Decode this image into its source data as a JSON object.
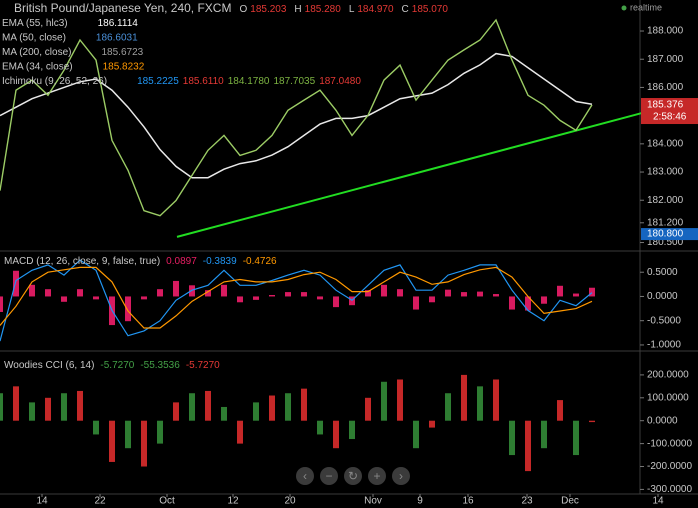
{
  "chart_data": [
    {
      "type": "line",
      "title": "British Pound/Japanese Yen, 240, FXCM",
      "ohlc": [
        {
          "label": "O",
          "text": "185.203"
        },
        {
          "label": "H",
          "text": "185.280"
        },
        {
          "label": "L",
          "text": "184.970"
        },
        {
          "label": "C",
          "text": "185.070"
        }
      ],
      "status": "realtime",
      "legend": [
        {
          "name": "EMA (55, hlc3)",
          "texts": [
            "186.1114"
          ],
          "colors": [
            "#ffffff"
          ]
        },
        {
          "name": "MA (50, close)",
          "texts": [
            "186.6031"
          ],
          "colors": [
            "#4a90d9"
          ]
        },
        {
          "name": "MA (200, close)",
          "texts": [
            "185.6723"
          ],
          "colors": [
            "#9e9e9e"
          ]
        },
        {
          "name": "EMA (34, close)",
          "texts": [
            "185.8232"
          ],
          "colors": [
            "#ff9800"
          ]
        },
        {
          "name": "Ichimoku (9, 26, 52, 26)",
          "texts": [
            "185.2225",
            "185.6110",
            "184.1780",
            "187.7035",
            "187.0480"
          ],
          "colors": [
            "#2196f3",
            "#e53935",
            "#7cb342",
            "#7cb342",
            "#e53935"
          ]
        }
      ],
      "x": [
        0,
        4,
        8,
        12,
        16,
        20,
        24,
        28,
        32,
        36,
        40,
        44,
        48,
        52,
        56,
        60,
        64,
        68,
        72,
        76,
        80,
        84,
        88,
        92,
        96,
        100,
        104,
        108,
        112,
        116,
        120,
        124,
        128,
        132,
        136,
        140,
        144,
        148
      ],
      "values": [
        182.34,
        185.9,
        186.26,
        185.72,
        186.61,
        187.68,
        186.97,
        184.12,
        183.06,
        181.63,
        181.45,
        181.99,
        182.88,
        183.77,
        184.3,
        183.59,
        183.77,
        184.3,
        185.19,
        185.55,
        185.9,
        185.19,
        184.3,
        185.01,
        186.26,
        186.79,
        185.55,
        186.26,
        186.97,
        187.33,
        187.68,
        188.39,
        186.97,
        185.72,
        185.37,
        184.83,
        184.48,
        185.38
      ],
      "color": "#9ccc65",
      "series": [
        {
          "name": "EMA (55, hlc3)",
          "color": "#e8e8e8",
          "values": [
            185.0,
            185.3,
            185.6,
            185.8,
            186.0,
            186.2,
            186.3,
            185.9,
            185.3,
            184.6,
            183.8,
            183.2,
            182.8,
            182.8,
            183.1,
            183.3,
            183.4,
            183.6,
            183.9,
            184.3,
            184.7,
            184.9,
            184.9,
            185.0,
            185.3,
            185.6,
            185.7,
            185.8,
            186.1,
            186.5,
            186.8,
            187.2,
            187.1,
            186.7,
            186.3,
            185.9,
            185.5,
            185.4
          ]
        }
      ],
      "trendline": {
        "x": [
          44.25,
          161.25
        ],
        "values": [
          180.7,
          185.12
        ],
        "color": "#22dd22"
      },
      "xlim": [
        0,
        174.5
      ],
      "xticks": [
        {
          "value": 10.5,
          "label": "14"
        },
        {
          "value": 25,
          "label": "22"
        },
        {
          "value": 41.75,
          "label": "Oct"
        },
        {
          "value": 58.25,
          "label": "12"
        },
        {
          "value": 72.5,
          "label": "20"
        },
        {
          "value": 93.25,
          "label": "Nov"
        },
        {
          "value": 105,
          "label": "9"
        },
        {
          "value": 117,
          "label": "16"
        },
        {
          "value": 131.75,
          "label": "23"
        },
        {
          "value": 142.5,
          "label": "Dec"
        },
        {
          "value": 164.5,
          "label": "14"
        }
      ],
      "ylim": [
        180.2,
        189.1
      ],
      "yticks": [
        {
          "value": 188,
          "label": "188.000"
        },
        {
          "value": 187,
          "label": "187.000"
        },
        {
          "value": 186,
          "label": "186.000"
        },
        {
          "value": 184,
          "label": "184.000"
        },
        {
          "value": 183,
          "label": "183.000"
        },
        {
          "value": 182,
          "label": "182.000"
        },
        {
          "value": 181.2,
          "label": "181.200"
        },
        {
          "value": 180.5,
          "label": "180.500"
        }
      ],
      "last_price": 185.376,
      "last_time": "2:58:46",
      "marker": {
        "value": 180.8,
        "label": "180.800"
      }
    },
    {
      "type": "macd",
      "title": "MACD (12, 26, close, 9, false, true)",
      "readings": [
        {
          "text": "0.0897",
          "color": "#e91e63"
        },
        {
          "text": "-0.3839",
          "color": "#2196f3"
        },
        {
          "text": "-0.4726",
          "color": "#ff9800"
        }
      ],
      "lines": [
        {
          "color": "#2196f3",
          "values": [
            -0.92,
            0.33,
            0.54,
            0.65,
            0.44,
            0.75,
            0.54,
            -0.29,
            -0.81,
            -0.71,
            -0.5,
            -0.08,
            0.13,
            0.23,
            0.54,
            0.23,
            0.23,
            0.33,
            0.44,
            0.54,
            0.44,
            0.13,
            -0.08,
            0.23,
            0.54,
            0.65,
            0.13,
            0.13,
            0.44,
            0.54,
            0.65,
            0.65,
            0.13,
            -0.29,
            -0.5,
            -0.08,
            -0.19,
            0.08
          ]
        },
        {
          "color": "#ff9800",
          "values": [
            -0.6,
            -0.2,
            0.3,
            0.5,
            0.55,
            0.6,
            0.6,
            0.3,
            -0.3,
            -0.65,
            -0.65,
            -0.4,
            -0.1,
            0.1,
            0.3,
            0.35,
            0.3,
            0.3,
            0.35,
            0.45,
            0.5,
            0.35,
            0.1,
            0.1,
            0.3,
            0.5,
            0.4,
            0.25,
            0.3,
            0.45,
            0.55,
            0.6,
            0.4,
            0.0,
            -0.35,
            -0.3,
            -0.25,
            -0.1
          ]
        }
      ],
      "histogram": {
        "color": "#d81b60",
        "values": [
          -0.32,
          0.53,
          0.24,
          0.15,
          -0.11,
          0.15,
          -0.06,
          -0.59,
          -0.51,
          -0.06,
          0.15,
          0.32,
          0.23,
          0.13,
          0.24,
          -0.12,
          -0.07,
          0.03,
          0.09,
          0.09,
          -0.06,
          -0.22,
          -0.18,
          0.13,
          0.24,
          0.15,
          -0.27,
          -0.12,
          0.14,
          0.09,
          0.1,
          0.05,
          -0.27,
          -0.29,
          -0.15,
          0.22,
          0.06,
          0.18
        ]
      },
      "ylim": [
        -1.125,
        0.917
      ],
      "yticks": [
        {
          "value": 0.5,
          "label": "0.5000"
        },
        {
          "value": 0,
          "label": "0.0000"
        },
        {
          "value": -0.5,
          "label": "-0.5000"
        },
        {
          "value": -1,
          "label": "-1.0000"
        }
      ]
    },
    {
      "type": "cci",
      "title": "Woodies CCI (6, 14)",
      "readings": [
        {
          "text": "-5.7270",
          "color": "#43a047"
        },
        {
          "text": "-55.3536",
          "color": "#43a047"
        },
        {
          "text": "-5.7270",
          "color": "#e53935"
        }
      ],
      "histogram": {
        "colors": [
          "#2e7d32",
          "#c62828"
        ],
        "values": [
          120,
          150,
          80,
          100,
          120,
          130,
          -60,
          -180,
          -120,
          -200,
          -100,
          80,
          120,
          130,
          60,
          -100,
          80,
          110,
          120,
          140,
          -60,
          -120,
          -80,
          100,
          170,
          180,
          -120,
          -30,
          120,
          200,
          150,
          180,
          -150,
          -220,
          -120,
          90,
          -150,
          -6
        ]
      },
      "ylim": [
        -320,
        300
      ],
      "yticks": [
        {
          "value": 200,
          "label": "200.0000"
        },
        {
          "value": 100,
          "label": "100.0000"
        },
        {
          "value": 0,
          "label": "0.0000"
        },
        {
          "value": -100,
          "label": "-100.0000"
        },
        {
          "value": -200,
          "label": "-200.0000"
        },
        {
          "value": -300,
          "label": "-300.0000"
        }
      ]
    }
  ]
}
